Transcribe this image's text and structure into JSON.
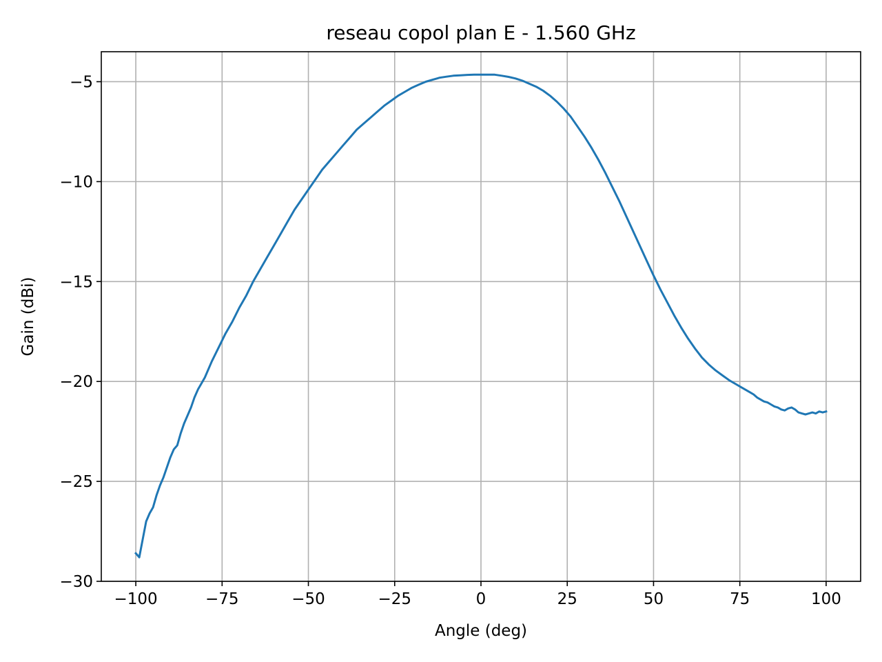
{
  "chart_data": {
    "type": "line",
    "title": "reseau copol plan E - 1.560 GHz",
    "xlabel": "Angle (deg)",
    "ylabel": "Gain (dBi)",
    "xlim": [
      -110,
      110
    ],
    "ylim": [
      -30,
      -3.5
    ],
    "xticks": [
      -100,
      -75,
      -50,
      -25,
      0,
      25,
      50,
      75,
      100
    ],
    "xtick_labels": [
      "−100",
      "−75",
      "−50",
      "−25",
      "0",
      "25",
      "50",
      "75",
      "100"
    ],
    "yticks": [
      -30,
      -25,
      -20,
      -15,
      -10,
      -5
    ],
    "ytick_labels": [
      "−30",
      "−25",
      "−20",
      "−15",
      "−10",
      "−5"
    ],
    "grid": true,
    "line_color": "#1f77b4",
    "grid_color": "#b0b0b0",
    "series": [
      {
        "x": [
          -100,
          -99,
          -98,
          -97,
          -96,
          -95,
          -94,
          -93,
          -92,
          -91,
          -90,
          -89,
          -88,
          -87,
          -86,
          -85,
          -84,
          -83,
          -82,
          -81,
          -80,
          -78,
          -76,
          -74,
          -72,
          -70,
          -68,
          -66,
          -64,
          -62,
          -60,
          -58,
          -56,
          -54,
          -52,
          -50,
          -48,
          -46,
          -44,
          -42,
          -40,
          -38,
          -36,
          -34,
          -32,
          -30,
          -28,
          -26,
          -24,
          -22,
          -20,
          -18,
          -16,
          -14,
          -12,
          -10,
          -8,
          -6,
          -4,
          -2,
          0,
          2,
          4,
          6,
          8,
          10,
          12,
          14,
          16,
          18,
          20,
          22,
          24,
          26,
          28,
          30,
          32,
          34,
          36,
          38,
          40,
          42,
          44,
          46,
          48,
          50,
          52,
          54,
          56,
          58,
          60,
          62,
          64,
          66,
          68,
          70,
          72,
          74,
          76,
          78,
          79,
          80,
          81,
          82,
          83,
          84,
          85,
          86,
          87,
          88,
          89,
          90,
          91,
          92,
          93,
          94,
          95,
          96,
          97,
          98,
          99,
          100
        ],
        "y": [
          -28.6,
          -28.8,
          -27.9,
          -27.0,
          -26.6,
          -26.3,
          -25.7,
          -25.2,
          -24.8,
          -24.3,
          -23.8,
          -23.4,
          -23.2,
          -22.6,
          -22.1,
          -21.7,
          -21.3,
          -20.8,
          -20.4,
          -20.1,
          -19.8,
          -19.0,
          -18.3,
          -17.6,
          -17.0,
          -16.3,
          -15.7,
          -15.0,
          -14.4,
          -13.8,
          -13.2,
          -12.6,
          -12.0,
          -11.4,
          -10.9,
          -10.4,
          -9.9,
          -9.4,
          -9.0,
          -8.6,
          -8.2,
          -7.8,
          -7.4,
          -7.1,
          -6.8,
          -6.5,
          -6.2,
          -5.95,
          -5.7,
          -5.5,
          -5.3,
          -5.15,
          -5.0,
          -4.9,
          -4.8,
          -4.75,
          -4.7,
          -4.68,
          -4.66,
          -4.65,
          -4.65,
          -4.65,
          -4.65,
          -4.7,
          -4.76,
          -4.84,
          -4.95,
          -5.1,
          -5.25,
          -5.45,
          -5.7,
          -6.0,
          -6.35,
          -6.75,
          -7.25,
          -7.75,
          -8.3,
          -8.9,
          -9.55,
          -10.25,
          -10.95,
          -11.7,
          -12.45,
          -13.2,
          -13.95,
          -14.7,
          -15.4,
          -16.05,
          -16.7,
          -17.3,
          -17.85,
          -18.35,
          -18.8,
          -19.15,
          -19.45,
          -19.7,
          -19.95,
          -20.15,
          -20.35,
          -20.55,
          -20.65,
          -20.8,
          -20.9,
          -21.0,
          -21.05,
          -21.15,
          -21.25,
          -21.3,
          -21.4,
          -21.45,
          -21.35,
          -21.3,
          -21.4,
          -21.55,
          -21.6,
          -21.65,
          -21.6,
          -21.55,
          -21.6,
          -21.5,
          -21.55,
          -21.5
        ]
      }
    ]
  }
}
